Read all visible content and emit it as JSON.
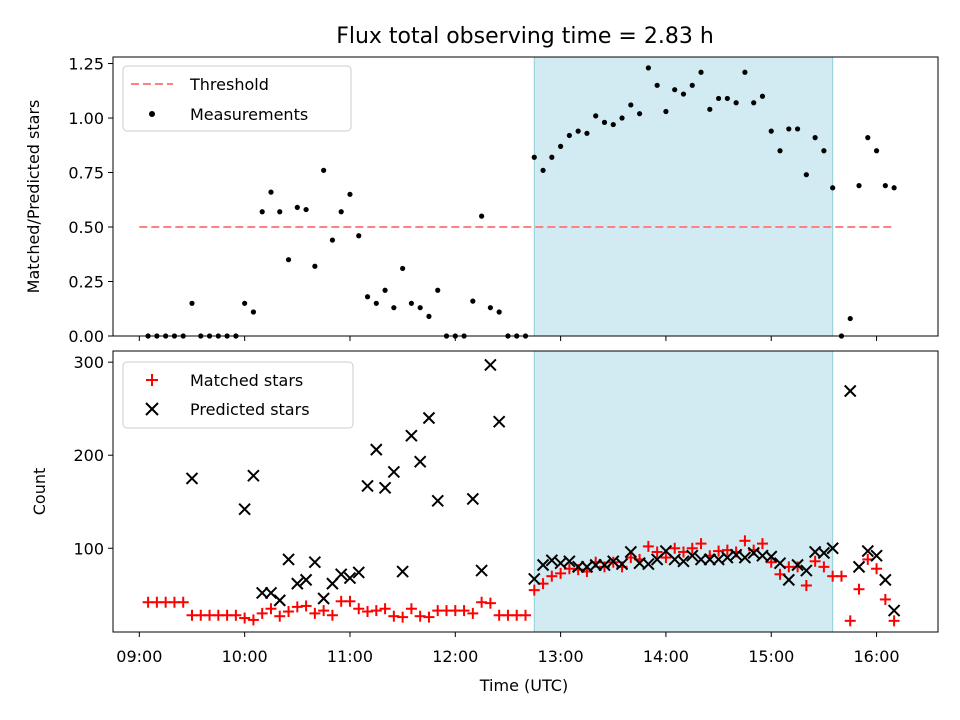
{
  "title": "Flux total observing time = 2.83 h",
  "colors": {
    "threshold": "#ff8080",
    "measurement": "#000000",
    "matched": "#ff0000",
    "predicted": "#000000",
    "shade": "#add8e6"
  },
  "chart_data": [
    {
      "type": "scatter",
      "ylabel": "Matched/Predicted stars",
      "xlabel": "",
      "xlim": [
        "08:45",
        "16:35"
      ],
      "ylim": [
        0,
        1.28
      ],
      "yticks": [
        "0.00",
        "0.25",
        "0.50",
        "0.75",
        "1.00",
        "1.25"
      ],
      "shaded_span": [
        "12:45",
        "15:35"
      ],
      "legend": {
        "location": "upper left",
        "entries": [
          "Threshold",
          "Measurements"
        ]
      },
      "threshold": {
        "name": "Threshold",
        "y": 0.5,
        "x": [
          "09:00",
          "16:10"
        ],
        "style": "dashed"
      },
      "measurements": {
        "name": "Measurements",
        "points": [
          [
            "09:05",
            0
          ],
          [
            "09:10",
            0
          ],
          [
            "09:15",
            0
          ],
          [
            "09:20",
            0
          ],
          [
            "09:25",
            0
          ],
          [
            "09:30",
            0.15
          ],
          [
            "09:35",
            0
          ],
          [
            "09:40",
            0
          ],
          [
            "09:45",
            0
          ],
          [
            "09:50",
            0
          ],
          [
            "09:55",
            0
          ],
          [
            "10:00",
            0.15
          ],
          [
            "10:05",
            0.11
          ],
          [
            "10:10",
            0.57
          ],
          [
            "10:15",
            0.66
          ],
          [
            "10:20",
            0.57
          ],
          [
            "10:25",
            0.35
          ],
          [
            "10:30",
            0.59
          ],
          [
            "10:35",
            0.58
          ],
          [
            "10:40",
            0.32
          ],
          [
            "10:45",
            0.76
          ],
          [
            "10:50",
            0.44
          ],
          [
            "10:55",
            0.57
          ],
          [
            "11:00",
            0.65
          ],
          [
            "11:05",
            0.46
          ],
          [
            "11:10",
            0.18
          ],
          [
            "11:15",
            0.15
          ],
          [
            "11:20",
            0.21
          ],
          [
            "11:25",
            0.13
          ],
          [
            "11:30",
            0.31
          ],
          [
            "11:35",
            0.15
          ],
          [
            "11:40",
            0.13
          ],
          [
            "11:45",
            0.09
          ],
          [
            "11:50",
            0.21
          ],
          [
            "11:55",
            0
          ],
          [
            "12:00",
            0
          ],
          [
            "12:05",
            0
          ],
          [
            "12:10",
            0.16
          ],
          [
            "12:15",
            0.55
          ],
          [
            "12:20",
            0.13
          ],
          [
            "12:25",
            0.11
          ],
          [
            "12:30",
            0
          ],
          [
            "12:35",
            0
          ],
          [
            "12:40",
            0
          ],
          [
            "12:45",
            0.82
          ],
          [
            "12:50",
            0.76
          ],
          [
            "12:55",
            0.82
          ],
          [
            "13:00",
            0.87
          ],
          [
            "13:05",
            0.92
          ],
          [
            "13:10",
            0.94
          ],
          [
            "13:15",
            0.93
          ],
          [
            "13:20",
            1.01
          ],
          [
            "13:25",
            0.98
          ],
          [
            "13:30",
            0.97
          ],
          [
            "13:35",
            1.0
          ],
          [
            "13:40",
            1.06
          ],
          [
            "13:45",
            1.02
          ],
          [
            "13:50",
            1.23
          ],
          [
            "13:55",
            1.15
          ],
          [
            "14:00",
            1.03
          ],
          [
            "14:05",
            1.13
          ],
          [
            "14:10",
            1.11
          ],
          [
            "14:15",
            1.15
          ],
          [
            "14:20",
            1.21
          ],
          [
            "14:25",
            1.04
          ],
          [
            "14:30",
            1.09
          ],
          [
            "14:35",
            1.09
          ],
          [
            "14:40",
            1.07
          ],
          [
            "14:45",
            1.21
          ],
          [
            "14:50",
            1.07
          ],
          [
            "14:55",
            1.1
          ],
          [
            "15:00",
            0.94
          ],
          [
            "15:05",
            0.85
          ],
          [
            "15:10",
            0.95
          ],
          [
            "15:15",
            0.95
          ],
          [
            "15:20",
            0.74
          ],
          [
            "15:25",
            0.91
          ],
          [
            "15:30",
            0.85
          ],
          [
            "15:35",
            0.68
          ],
          [
            "15:40",
            0
          ],
          [
            "15:45",
            0.08
          ],
          [
            "15:50",
            0.69
          ],
          [
            "15:55",
            0.91
          ],
          [
            "16:00",
            0.85
          ],
          [
            "16:05",
            0.69
          ],
          [
            "16:10",
            0.68
          ]
        ]
      }
    },
    {
      "type": "scatter",
      "ylabel": "Count",
      "xlabel": "Time (UTC)",
      "xlim": [
        "08:45",
        "16:35"
      ],
      "ylim": [
        10,
        312
      ],
      "yticks": [
        "100",
        "200",
        "300"
      ],
      "xticks": [
        "09:00",
        "10:00",
        "11:00",
        "12:00",
        "13:00",
        "14:00",
        "15:00",
        "16:00"
      ],
      "shaded_span": [
        "12:45",
        "15:35"
      ],
      "legend": {
        "location": "upper left",
        "entries": [
          "Matched stars",
          "Predicted stars"
        ]
      },
      "series": [
        {
          "name": "Matched stars",
          "marker": "plus",
          "points": [
            [
              "09:05",
              42
            ],
            [
              "09:10",
              42
            ],
            [
              "09:15",
              42
            ],
            [
              "09:20",
              42
            ],
            [
              "09:25",
              42
            ],
            [
              "09:30",
              28
            ],
            [
              "09:35",
              28
            ],
            [
              "09:40",
              28
            ],
            [
              "09:45",
              28
            ],
            [
              "09:50",
              28
            ],
            [
              "09:55",
              28
            ],
            [
              "10:00",
              25
            ],
            [
              "10:05",
              23
            ],
            [
              "10:10",
              30
            ],
            [
              "10:15",
              35
            ],
            [
              "10:20",
              27
            ],
            [
              "10:25",
              32
            ],
            [
              "10:30",
              37
            ],
            [
              "10:35",
              38
            ],
            [
              "10:40",
              30
            ],
            [
              "10:45",
              33
            ],
            [
              "10:50",
              28
            ],
            [
              "10:55",
              43
            ],
            [
              "11:00",
              43
            ],
            [
              "11:05",
              35
            ],
            [
              "11:10",
              32
            ],
            [
              "11:15",
              33
            ],
            [
              "11:20",
              35
            ],
            [
              "11:25",
              27
            ],
            [
              "11:30",
              26
            ],
            [
              "11:35",
              35
            ],
            [
              "11:40",
              27
            ],
            [
              "11:45",
              26
            ],
            [
              "11:50",
              33
            ],
            [
              "11:55",
              33
            ],
            [
              "12:00",
              33
            ],
            [
              "12:05",
              33
            ],
            [
              "12:10",
              30
            ],
            [
              "12:15",
              42
            ],
            [
              "12:20",
              41
            ],
            [
              "12:25",
              28
            ],
            [
              "12:30",
              28
            ],
            [
              "12:35",
              28
            ],
            [
              "12:40",
              28
            ],
            [
              "12:45",
              55
            ],
            [
              "12:50",
              62
            ],
            [
              "12:55",
              70
            ],
            [
              "13:00",
              73
            ],
            [
              "13:05",
              78
            ],
            [
              "13:10",
              77
            ],
            [
              "13:15",
              75
            ],
            [
              "13:20",
              85
            ],
            [
              "13:25",
              80
            ],
            [
              "13:30",
              85
            ],
            [
              "13:35",
              80
            ],
            [
              "13:40",
              90
            ],
            [
              "13:45",
              88
            ],
            [
              "13:50",
              102
            ],
            [
              "13:55",
              96
            ],
            [
              "14:00",
              90
            ],
            [
              "14:05",
              100
            ],
            [
              "14:10",
              96
            ],
            [
              "14:15",
              100
            ],
            [
              "14:20",
              105
            ],
            [
              "14:25",
              92
            ],
            [
              "14:30",
              97
            ],
            [
              "14:35",
              98
            ],
            [
              "14:40",
              96
            ],
            [
              "14:45",
              108
            ],
            [
              "14:50",
              98
            ],
            [
              "14:55",
              105
            ],
            [
              "15:00",
              85
            ],
            [
              "15:05",
              72
            ],
            [
              "15:10",
              80
            ],
            [
              "15:15",
              80
            ],
            [
              "15:20",
              60
            ],
            [
              "15:25",
              86
            ],
            [
              "15:30",
              80
            ],
            [
              "15:35",
              70
            ],
            [
              "15:40",
              70
            ],
            [
              "15:45",
              22
            ],
            [
              "15:50",
              56
            ],
            [
              "15:55",
              88
            ],
            [
              "16:00",
              78
            ],
            [
              "16:05",
              45
            ],
            [
              "16:10",
              22
            ]
          ]
        },
        {
          "name": "Predicted stars",
          "marker": "x",
          "points": [
            [
              "09:30",
              175
            ],
            [
              "10:00",
              142
            ],
            [
              "10:05",
              178
            ],
            [
              "10:10",
              52
            ],
            [
              "10:15",
              52
            ],
            [
              "10:20",
              44
            ],
            [
              "10:25",
              88
            ],
            [
              "10:30",
              62
            ],
            [
              "10:35",
              66
            ],
            [
              "10:40",
              85
            ],
            [
              "10:45",
              46
            ],
            [
              "10:50",
              62
            ],
            [
              "10:55",
              72
            ],
            [
              "11:00",
              68
            ],
            [
              "11:05",
              74
            ],
            [
              "11:10",
              167
            ],
            [
              "11:15",
              206
            ],
            [
              "11:20",
              165
            ],
            [
              "11:25",
              182
            ],
            [
              "11:30",
              75
            ],
            [
              "11:35",
              221
            ],
            [
              "11:40",
              193
            ],
            [
              "11:45",
              240
            ],
            [
              "11:50",
              151
            ],
            [
              "12:10",
              153
            ],
            [
              "12:15",
              76
            ],
            [
              "12:20",
              297
            ],
            [
              "12:25",
              236
            ],
            [
              "12:45",
              67
            ],
            [
              "12:50",
              82
            ],
            [
              "12:55",
              87
            ],
            [
              "13:00",
              84
            ],
            [
              "13:05",
              86
            ],
            [
              "13:10",
              80
            ],
            [
              "13:15",
              80
            ],
            [
              "13:20",
              82
            ],
            [
              "13:25",
              82
            ],
            [
              "13:30",
              86
            ],
            [
              "13:35",
              83
            ],
            [
              "13:40",
              96
            ],
            [
              "13:45",
              84
            ],
            [
              "13:50",
              83
            ],
            [
              "13:55",
              88
            ],
            [
              "14:00",
              97
            ],
            [
              "14:05",
              88
            ],
            [
              "14:10",
              86
            ],
            [
              "14:15",
              92
            ],
            [
              "14:20",
              88
            ],
            [
              "14:25",
              88
            ],
            [
              "14:30",
              88
            ],
            [
              "14:35",
              90
            ],
            [
              "14:40",
              93
            ],
            [
              "14:45",
              90
            ],
            [
              "14:50",
              95
            ],
            [
              "14:55",
              92
            ],
            [
              "15:00",
              91
            ],
            [
              "15:05",
              84
            ],
            [
              "15:10",
              66
            ],
            [
              "15:15",
              82
            ],
            [
              "15:20",
              76
            ],
            [
              "15:25",
              96
            ],
            [
              "15:30",
              95
            ],
            [
              "15:35",
              100
            ],
            [
              "15:45",
              269
            ],
            [
              "15:50",
              80
            ],
            [
              "15:55",
              97
            ],
            [
              "16:00",
              92
            ],
            [
              "16:05",
              66
            ],
            [
              "16:10",
              33
            ]
          ]
        }
      ]
    }
  ]
}
